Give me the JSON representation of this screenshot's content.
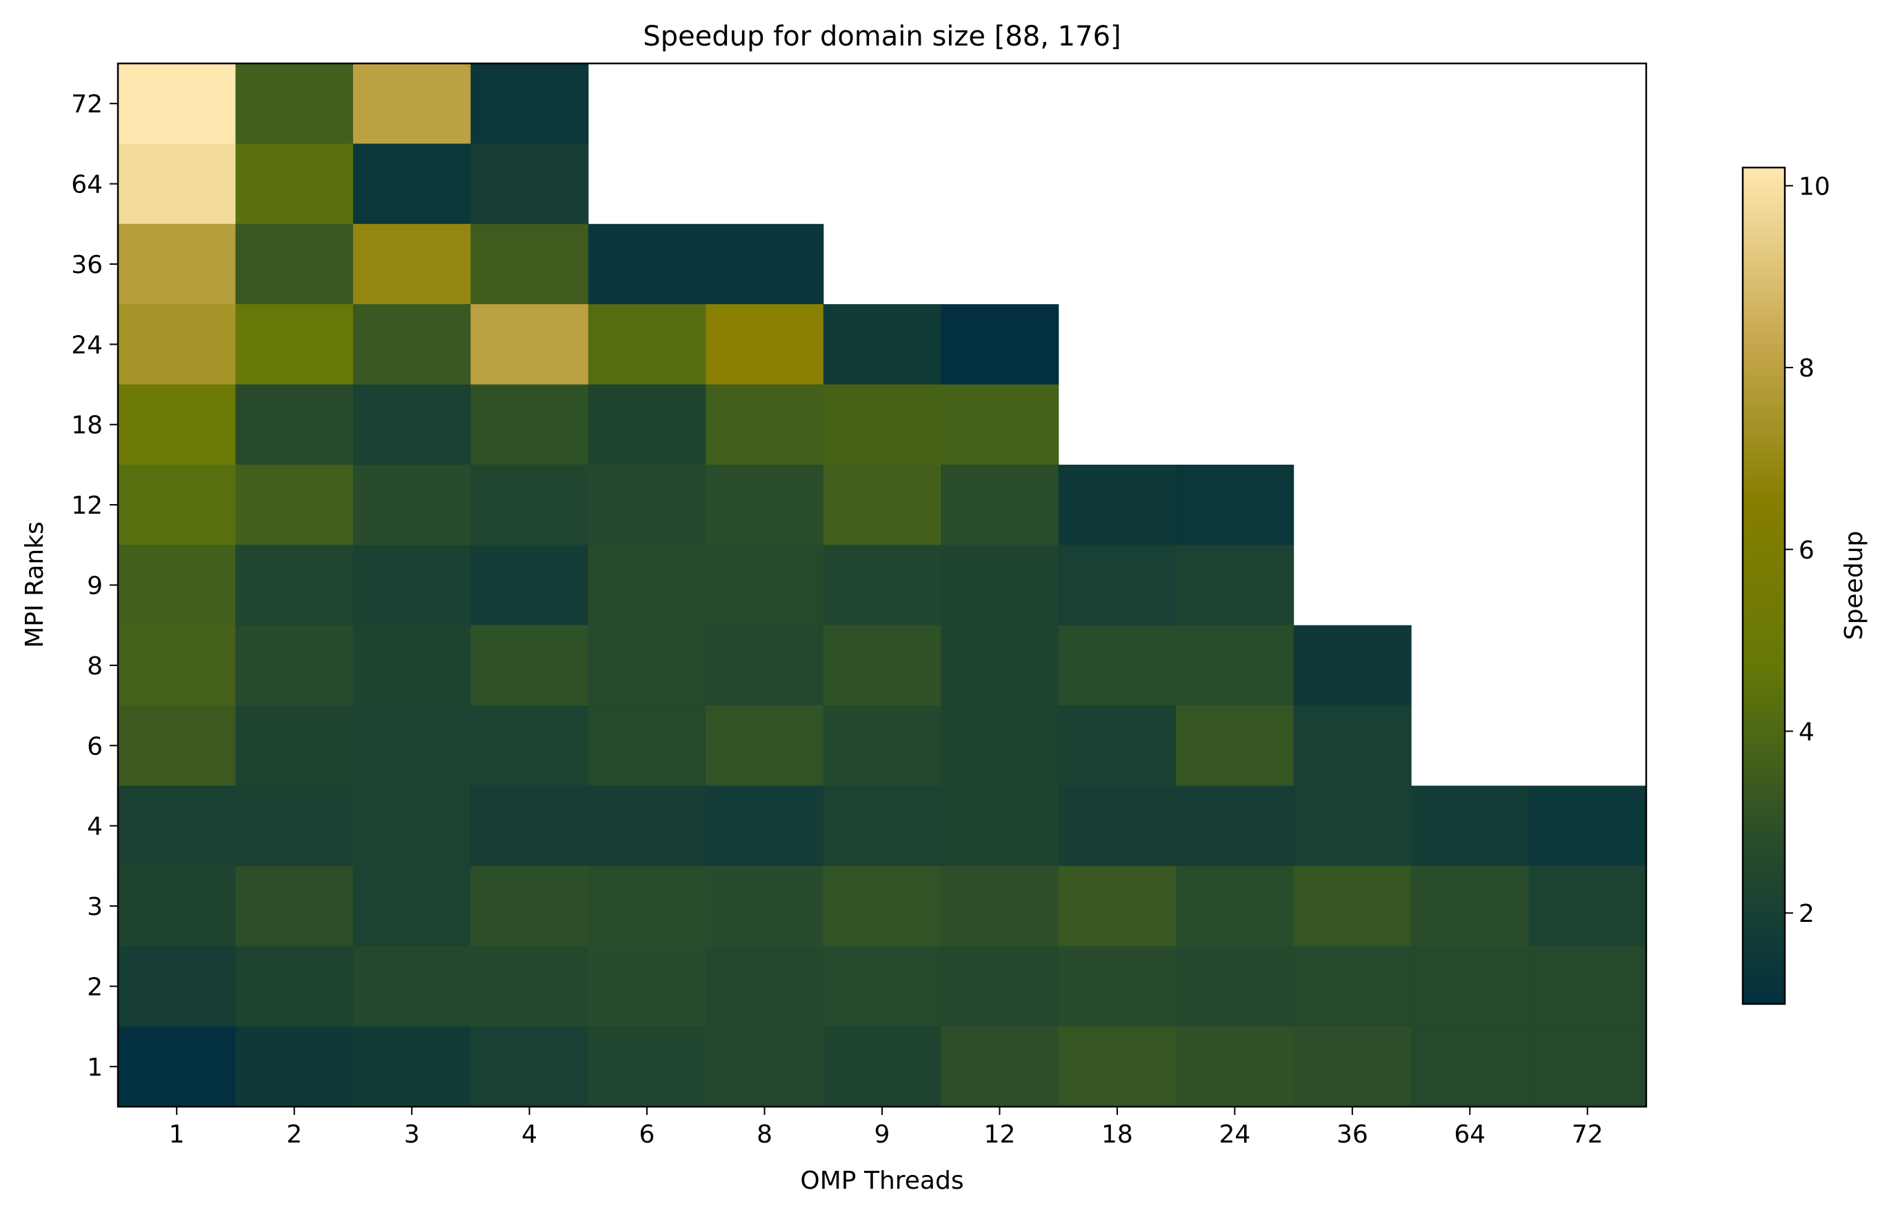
{
  "chart_data": {
    "type": "heatmap",
    "title": "Speedup for domain size [88, 176]",
    "xlabel": "OMP Threads",
    "ylabel": "MPI Ranks",
    "x_categories": [
      "1",
      "2",
      "3",
      "4",
      "6",
      "8",
      "9",
      "12",
      "18",
      "24",
      "36",
      "64",
      "72"
    ],
    "y_categories": [
      "72",
      "64",
      "36",
      "24",
      "18",
      "12",
      "9",
      "8",
      "6",
      "4",
      "3",
      "2",
      "1"
    ],
    "values": [
      [
        10.2,
        3.6,
        8.0,
        1.4,
        null,
        null,
        null,
        null,
        null,
        null,
        null,
        null,
        null
      ],
      [
        9.8,
        4.4,
        1.4,
        1.9,
        null,
        null,
        null,
        null,
        null,
        null,
        null,
        null,
        null
      ],
      [
        7.8,
        3.3,
        6.9,
        3.5,
        1.3,
        1.3,
        null,
        null,
        null,
        null,
        null,
        null,
        null
      ],
      [
        7.4,
        4.8,
        3.3,
        8.0,
        4.2,
        6.6,
        1.7,
        1.0,
        null,
        null,
        null,
        null,
        null
      ],
      [
        5.2,
        2.7,
        2.1,
        3.0,
        2.3,
        3.6,
        3.8,
        3.7,
        null,
        null,
        null,
        null,
        null
      ],
      [
        4.3,
        3.6,
        2.7,
        2.4,
        2.5,
        2.8,
        3.6,
        2.8,
        1.6,
        1.4,
        null,
        null,
        null
      ],
      [
        3.6,
        2.4,
        2.1,
        1.8,
        2.7,
        2.6,
        2.4,
        2.3,
        2.0,
        2.2,
        null,
        null,
        null
      ],
      [
        3.7,
        2.7,
        2.3,
        3.0,
        2.6,
        2.5,
        3.0,
        2.3,
        2.8,
        2.8,
        1.6,
        null,
        null
      ],
      [
        3.4,
        2.3,
        2.2,
        2.2,
        2.6,
        3.1,
        2.5,
        2.3,
        2.1,
        3.2,
        2.0,
        null,
        null
      ],
      [
        2.1,
        2.1,
        2.2,
        1.9,
        1.9,
        1.8,
        2.2,
        2.3,
        1.9,
        1.9,
        2.0,
        1.8,
        1.5
      ],
      [
        2.3,
        2.9,
        2.2,
        2.9,
        2.8,
        2.7,
        3.1,
        2.9,
        3.3,
        2.8,
        3.2,
        2.8,
        2.2
      ],
      [
        1.9,
        2.3,
        2.5,
        2.5,
        2.7,
        2.5,
        2.6,
        2.5,
        2.7,
        2.5,
        2.6,
        2.6,
        2.6
      ],
      [
        1.0,
        1.6,
        1.7,
        2.0,
        2.4,
        2.5,
        2.3,
        2.9,
        3.2,
        3.0,
        2.9,
        2.6,
        2.6
      ]
    ],
    "colorbar": {
      "label": "Speedup",
      "vmin": 1.0,
      "vmax": 10.2,
      "ticks": [
        2,
        4,
        6,
        8,
        10
      ],
      "colors": [
        "#02303f",
        "#2a4d2a",
        "#647808",
        "#867e00",
        "#c9aa52",
        "#ffe8b0"
      ]
    }
  }
}
